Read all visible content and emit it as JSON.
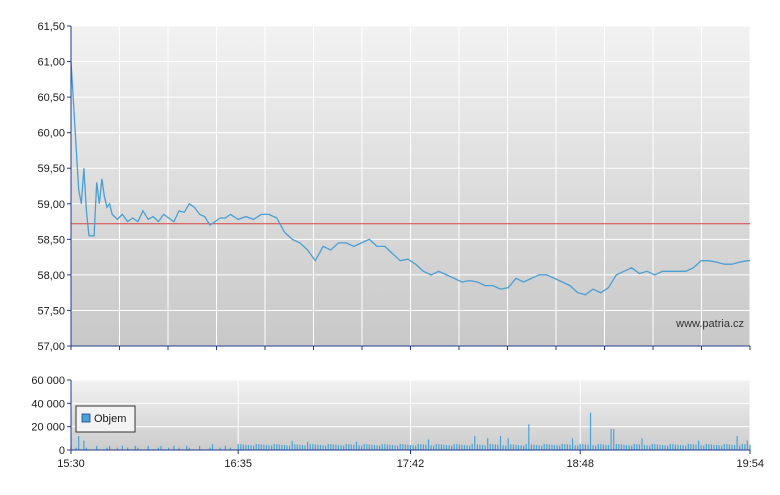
{
  "watermark": "www.patria.cz",
  "chart_data": [
    {
      "type": "line",
      "ylim": [
        57.0,
        61.5
      ],
      "y_ticks": [
        "61,50",
        "61,00",
        "60,50",
        "60,00",
        "59,50",
        "59,00",
        "58,50",
        "58,00",
        "57,50",
        "57,00"
      ],
      "y_tick_values": [
        61.5,
        61.0,
        60.5,
        60.0,
        59.5,
        59.0,
        58.5,
        58.0,
        57.5,
        57.0
      ],
      "x_range_minutes": [
        930,
        1194
      ],
      "reference_line": 58.72,
      "grid": true,
      "colors": {
        "line": "#4a9fd4",
        "reference": "#d94444",
        "bg_top": "#f0f0f0",
        "bg_bottom": "#c9c9c9",
        "axis": "#1f3a8a"
      },
      "series": [
        {
          "x": [
            "15:30",
            "15:31",
            "15:32",
            "15:33",
            "15:34",
            "15:35",
            "15:36",
            "15:37",
            "15:38",
            "15:39",
            "15:40",
            "15:41",
            "15:42",
            "15:43",
            "15:44",
            "15:45",
            "15:46",
            "15:48",
            "15:50",
            "15:52",
            "15:54",
            "15:56",
            "15:58",
            "16:00",
            "16:02",
            "16:04",
            "16:06",
            "16:08",
            "16:10",
            "16:12",
            "16:14",
            "16:16",
            "16:18",
            "16:20",
            "16:22",
            "16:24",
            "16:26",
            "16:28",
            "16:30",
            "16:32",
            "16:35",
            "16:38",
            "16:41",
            "16:44",
            "16:47",
            "16:50",
            "16:53",
            "16:56",
            "16:59",
            "17:02",
            "17:05",
            "17:08",
            "17:11",
            "17:14",
            "17:17",
            "17:20",
            "17:23",
            "17:26",
            "17:29",
            "17:32",
            "17:35",
            "17:38",
            "17:41",
            "17:44",
            "17:47",
            "17:50",
            "17:53",
            "17:56",
            "17:59",
            "18:02",
            "18:05",
            "18:08",
            "18:11",
            "18:14",
            "18:17",
            "18:20",
            "18:23",
            "18:26",
            "18:29",
            "18:32",
            "18:35",
            "18:38",
            "18:41",
            "18:44",
            "18:47",
            "18:50",
            "18:53",
            "18:56",
            "18:59",
            "19:02",
            "19:05",
            "19:08",
            "19:11",
            "19:14",
            "19:17",
            "19:20",
            "19:23",
            "19:26",
            "19:29",
            "19:32",
            "19:35",
            "19:38",
            "19:41",
            "19:44",
            "19:47",
            "19:50",
            "19:53",
            "19:54"
          ],
          "values": [
            61.0,
            60.4,
            59.8,
            59.2,
            59.0,
            59.5,
            58.9,
            58.55,
            58.55,
            58.55,
            59.3,
            59.0,
            59.35,
            59.1,
            58.95,
            59.0,
            58.85,
            58.78,
            58.85,
            58.75,
            58.8,
            58.75,
            58.9,
            58.78,
            58.82,
            58.75,
            58.85,
            58.8,
            58.75,
            58.9,
            58.88,
            59.0,
            58.95,
            58.85,
            58.82,
            58.7,
            58.75,
            58.8,
            58.8,
            58.85,
            58.78,
            58.82,
            58.78,
            58.85,
            58.85,
            58.8,
            58.6,
            58.5,
            58.45,
            58.35,
            58.2,
            58.4,
            58.35,
            58.45,
            58.45,
            58.4,
            58.45,
            58.5,
            58.4,
            58.4,
            58.3,
            58.2,
            58.22,
            58.15,
            58.05,
            58.0,
            58.05,
            58.0,
            57.95,
            57.9,
            57.92,
            57.9,
            57.85,
            57.85,
            57.8,
            57.82,
            57.95,
            57.9,
            57.95,
            58.0,
            58.0,
            57.95,
            57.9,
            57.85,
            57.75,
            57.72,
            57.8,
            57.75,
            57.82,
            58.0,
            58.05,
            58.1,
            58.02,
            58.05,
            58.0,
            58.05,
            58.05,
            58.05,
            58.05,
            58.1,
            58.2,
            58.2,
            58.18,
            58.15,
            58.15,
            58.18,
            58.2,
            58.2
          ]
        }
      ]
    },
    {
      "type": "bar",
      "ylim": [
        0,
        60000
      ],
      "y_ticks": [
        "60 000",
        "40 000",
        "20 000",
        "0"
      ],
      "y_tick_values": [
        60000,
        40000,
        20000,
        0
      ],
      "x_ticks": [
        "15:30",
        "16:35",
        "17:42",
        "18:48",
        "19:54"
      ],
      "x_tick_minutes": [
        930,
        995,
        1062,
        1128,
        1194
      ],
      "legend": {
        "label": "Objem",
        "placement": "top-left"
      },
      "grid": true,
      "colors": {
        "bar": "#4aa3d8",
        "bg_top": "#f0f0f0",
        "bg_bottom": "#cdcdcd",
        "axis": "#1f3a8a"
      },
      "typical_volume": 4500,
      "spikes": [
        {
          "time": "15:33",
          "value": 12000
        },
        {
          "time": "15:35",
          "value": 8000
        },
        {
          "time": "16:25",
          "value": 5000
        },
        {
          "time": "16:56",
          "value": 8000
        },
        {
          "time": "17:02",
          "value": 7000
        },
        {
          "time": "17:21",
          "value": 7000
        },
        {
          "time": "17:49",
          "value": 9000
        },
        {
          "time": "18:07",
          "value": 12000
        },
        {
          "time": "18:12",
          "value": 10000
        },
        {
          "time": "18:17",
          "value": 12000
        },
        {
          "time": "18:20",
          "value": 10000
        },
        {
          "time": "18:28",
          "value": 22000
        },
        {
          "time": "18:45",
          "value": 10000
        },
        {
          "time": "18:52",
          "value": 32000
        },
        {
          "time": "19:00",
          "value": 18000
        },
        {
          "time": "19:01",
          "value": 18000
        },
        {
          "time": "19:12",
          "value": 10000
        },
        {
          "time": "19:34",
          "value": 8000
        },
        {
          "time": "19:49",
          "value": 12000
        },
        {
          "time": "19:53",
          "value": 8000
        }
      ]
    }
  ]
}
